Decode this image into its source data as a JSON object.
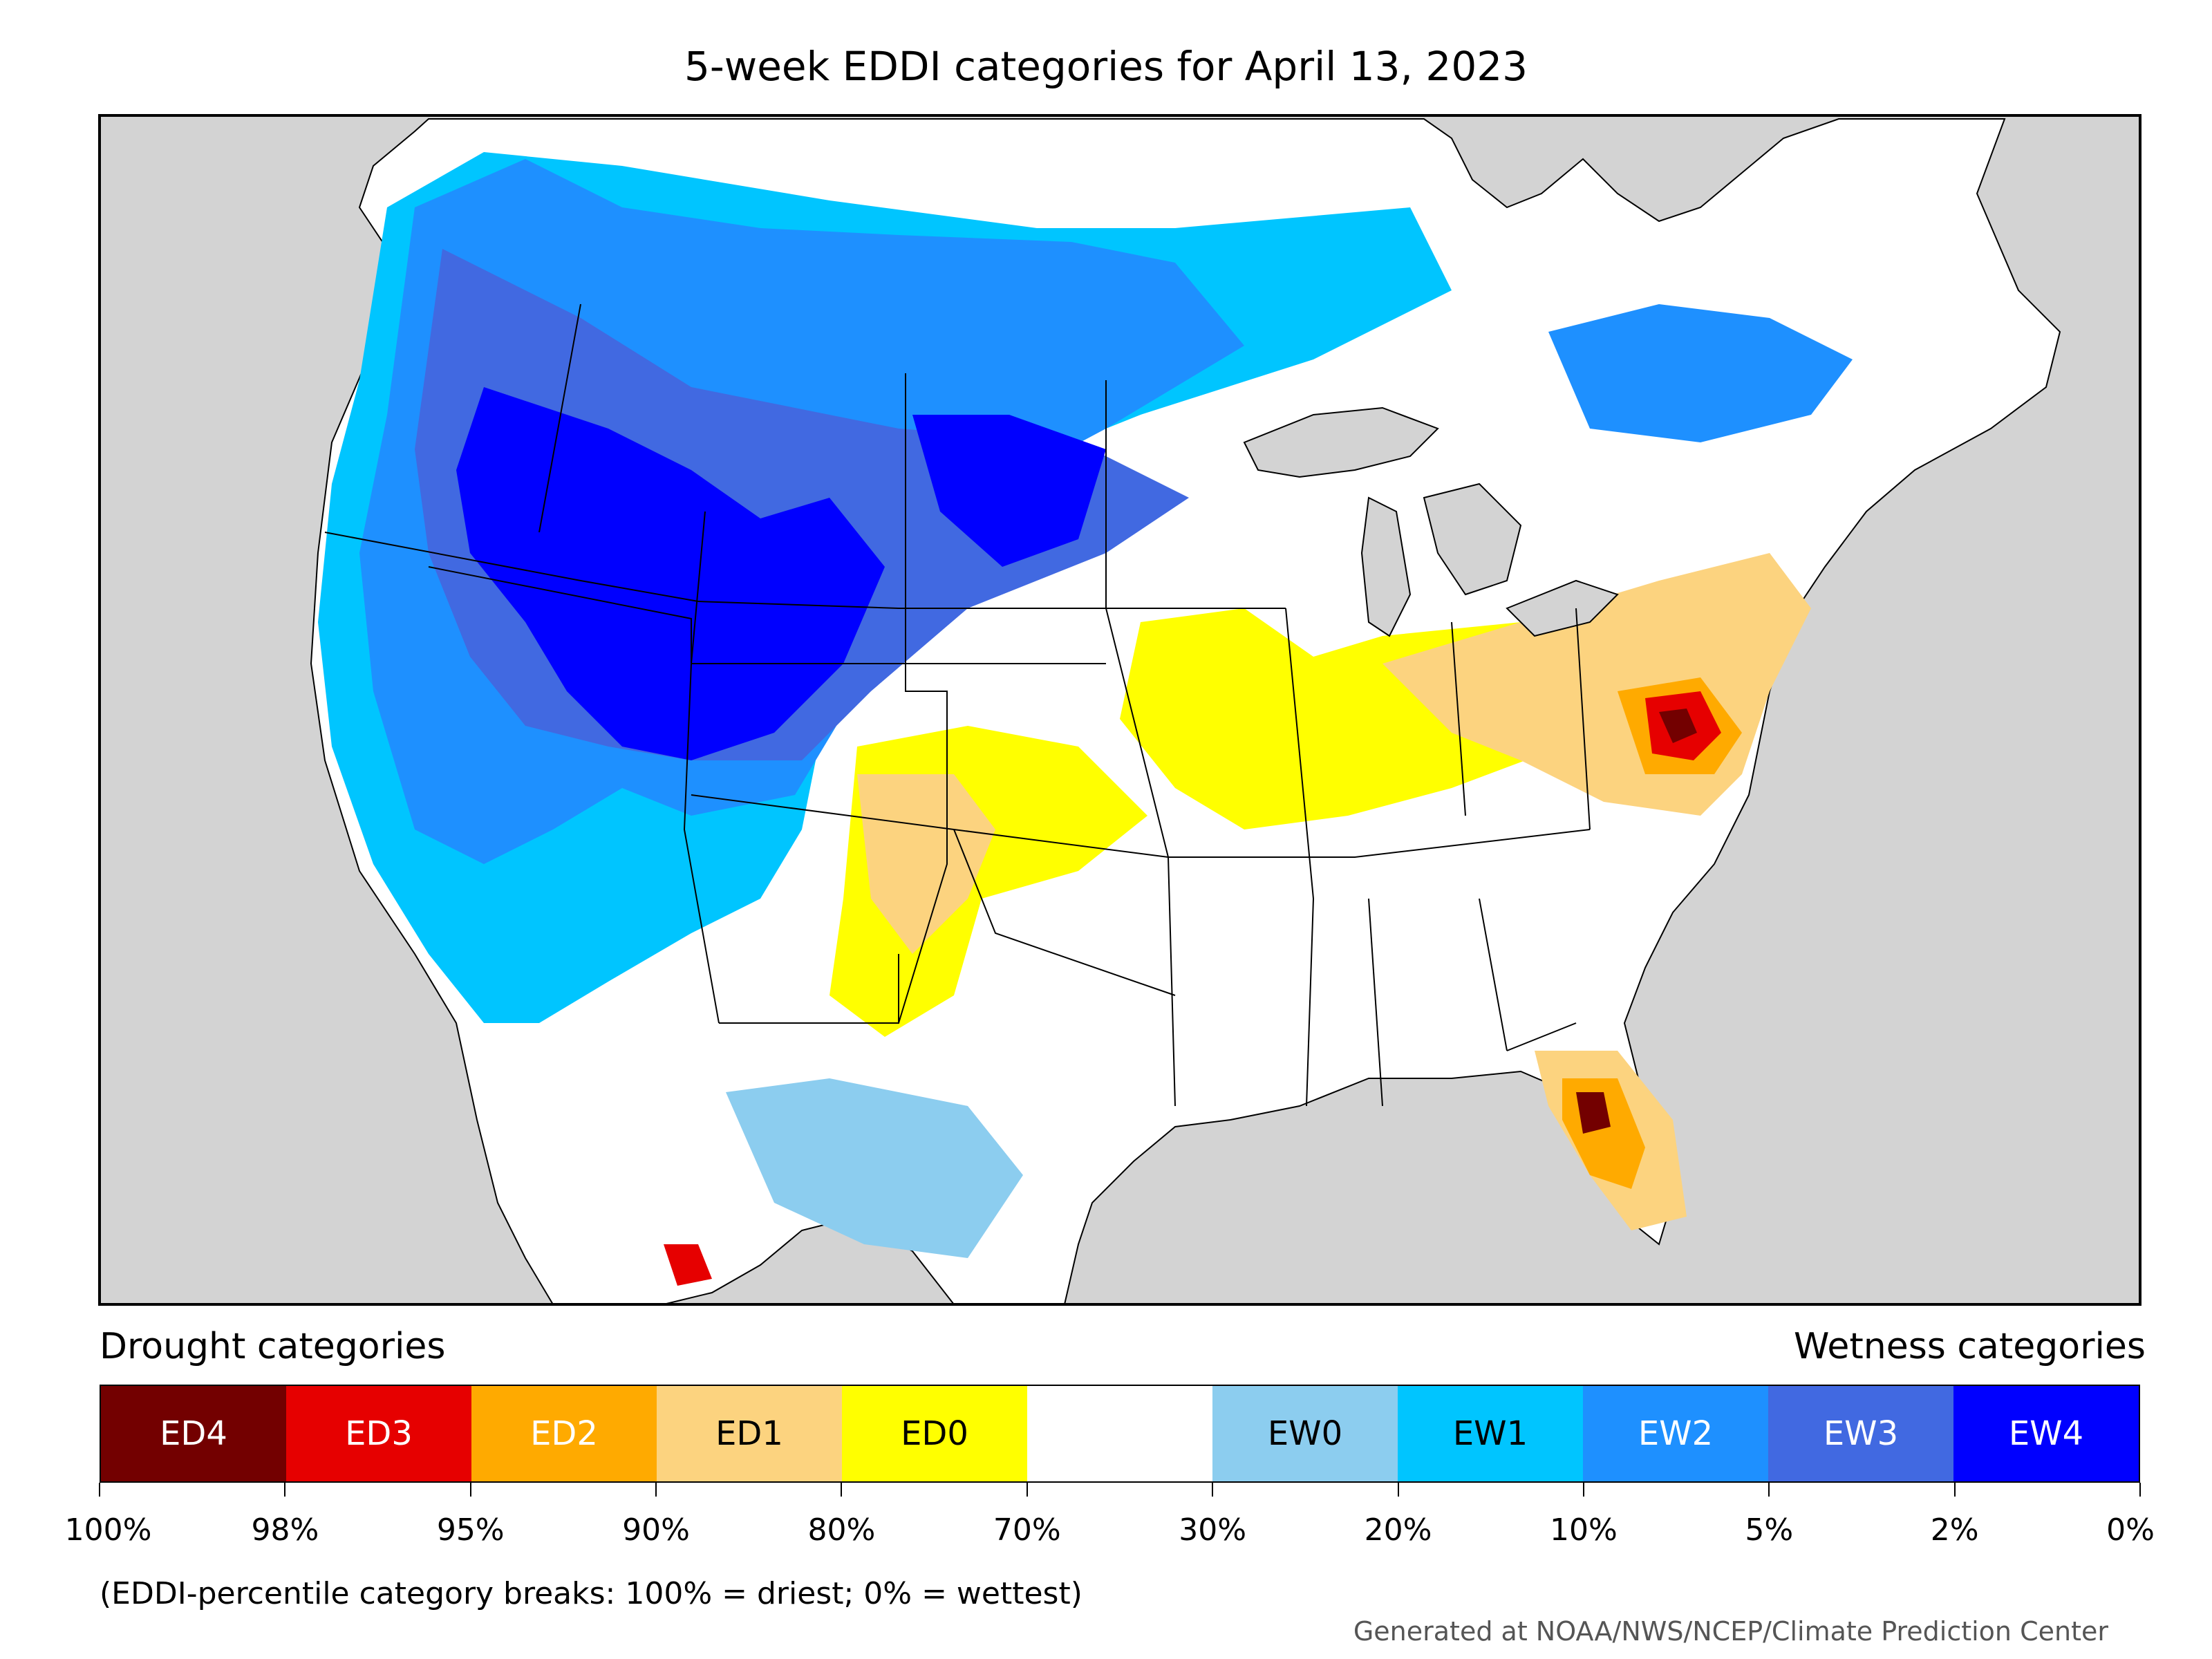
{
  "title": "5-week EDDI categories for April 13, 2023",
  "legend": {
    "drought_label": "Drought categories",
    "wetness_label": "Wetness categories",
    "categories": [
      {
        "label": "ED4",
        "color": "#730000",
        "text_color": "#ffffff"
      },
      {
        "label": "ED3",
        "color": "#e60000",
        "text_color": "#ffffff"
      },
      {
        "label": "ED2",
        "color": "#ffaa00",
        "text_color": "#ffffff"
      },
      {
        "label": "ED1",
        "color": "#fcd37f",
        "text_color": "#000000"
      },
      {
        "label": "ED0",
        "color": "#ffff00",
        "text_color": "#000000"
      },
      {
        "label": "",
        "color": "#ffffff",
        "text_color": "#000000"
      },
      {
        "label": "EW0",
        "color": "#8ccdef",
        "text_color": "#000000"
      },
      {
        "label": "EW1",
        "color": "#00c5ff",
        "text_color": "#000000"
      },
      {
        "label": "EW2",
        "color": "#1e90ff",
        "text_color": "#ffffff"
      },
      {
        "label": "EW3",
        "color": "#4169e1",
        "text_color": "#ffffff"
      },
      {
        "label": "EW4",
        "color": "#0000ff",
        "text_color": "#ffffff"
      }
    ],
    "ticks": [
      "100%",
      "98%",
      "95%",
      "90%",
      "80%",
      "70%",
      "30%",
      "20%",
      "10%",
      "5%",
      "2%",
      "0%"
    ]
  },
  "note": "(EDDI-percentile category breaks: 100% = driest; 0% = wettest)",
  "credit": "Generated at NOAA/NWS/NCEP/Climate Prediction Center",
  "colors": {
    "ocean_background": "#d3d3d3",
    "land_base": "#ffffff"
  }
}
